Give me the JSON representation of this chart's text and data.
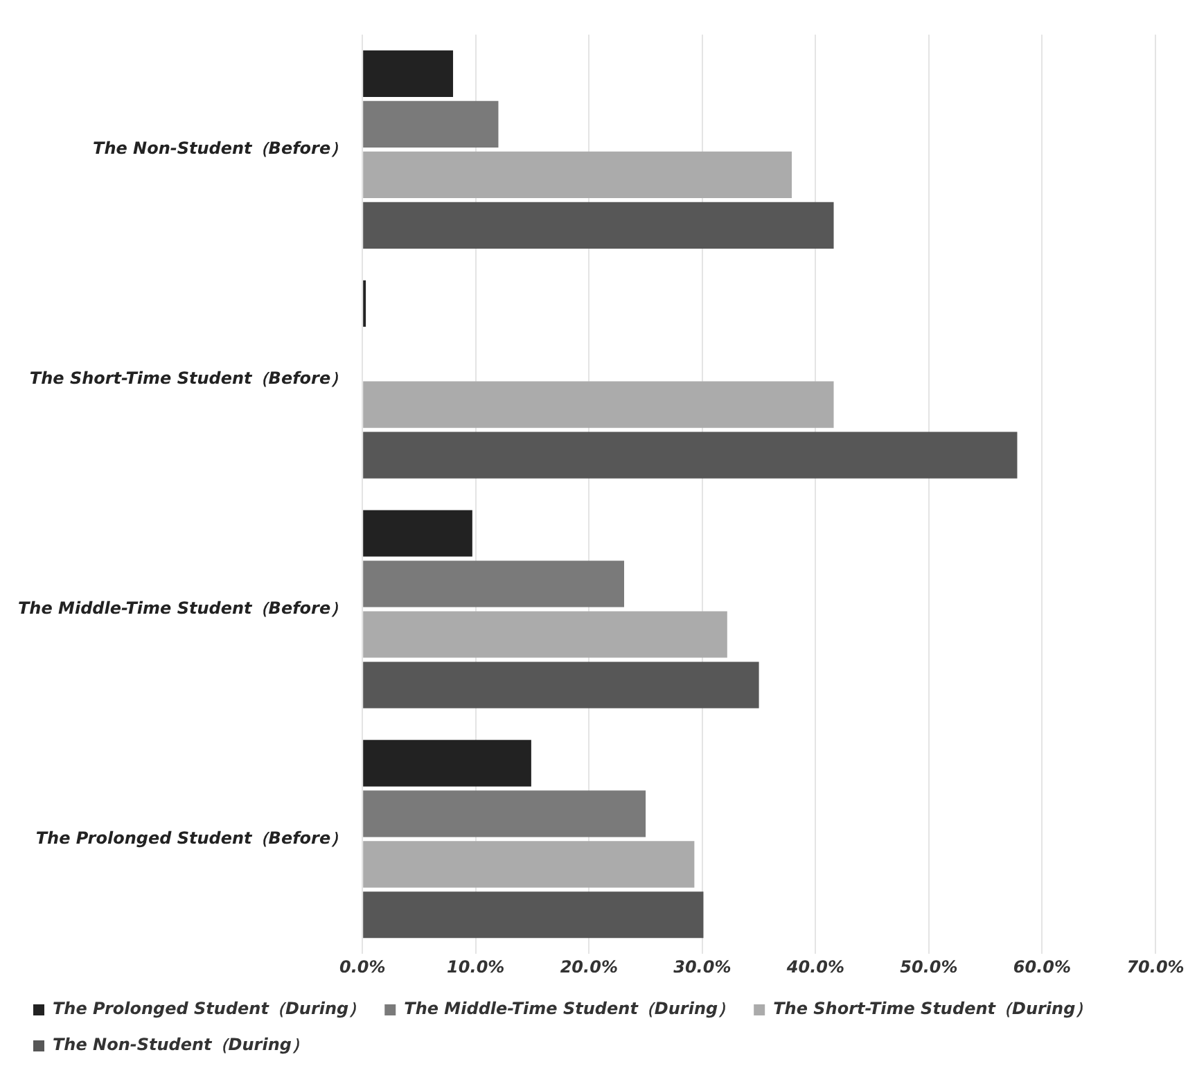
{
  "chart_data": {
    "type": "bar",
    "orientation": "horizontal",
    "categories": [
      "The Non-Student（Before）",
      "The Short-Time Student（Before）",
      "The Middle-Time Student（Before）",
      "The Prolonged Student（Before）"
    ],
    "series": [
      {
        "name": "The Prolonged Student（During）",
        "color": "#222222",
        "values": [
          8.0,
          0.3,
          9.7,
          14.9
        ]
      },
      {
        "name": "The Middle-Time Student（During）",
        "color": "#7a7a7a",
        "values": [
          12.0,
          0,
          23.1,
          25.0
        ]
      },
      {
        "name": "The Short-Time Student（During）",
        "color": "#ababab",
        "values": [
          37.9,
          41.6,
          32.2,
          29.3
        ]
      },
      {
        "name": "The Non-Student（During）",
        "color": "#575757",
        "values": [
          41.6,
          57.8,
          35.0,
          30.1
        ]
      }
    ],
    "xlim": [
      0,
      70
    ],
    "xticks": [
      {
        "value": 0,
        "label": "0.0%"
      },
      {
        "value": 10,
        "label": "10.0%"
      },
      {
        "value": 20,
        "label": "20.0%"
      },
      {
        "value": 30,
        "label": "30.0%"
      },
      {
        "value": 40,
        "label": "40.0%"
      },
      {
        "value": 50,
        "label": "50.0%"
      },
      {
        "value": 60,
        "label": "60.0%"
      },
      {
        "value": 70,
        "label": "70.0%"
      }
    ],
    "grid": "x",
    "legend": "bottom"
  }
}
